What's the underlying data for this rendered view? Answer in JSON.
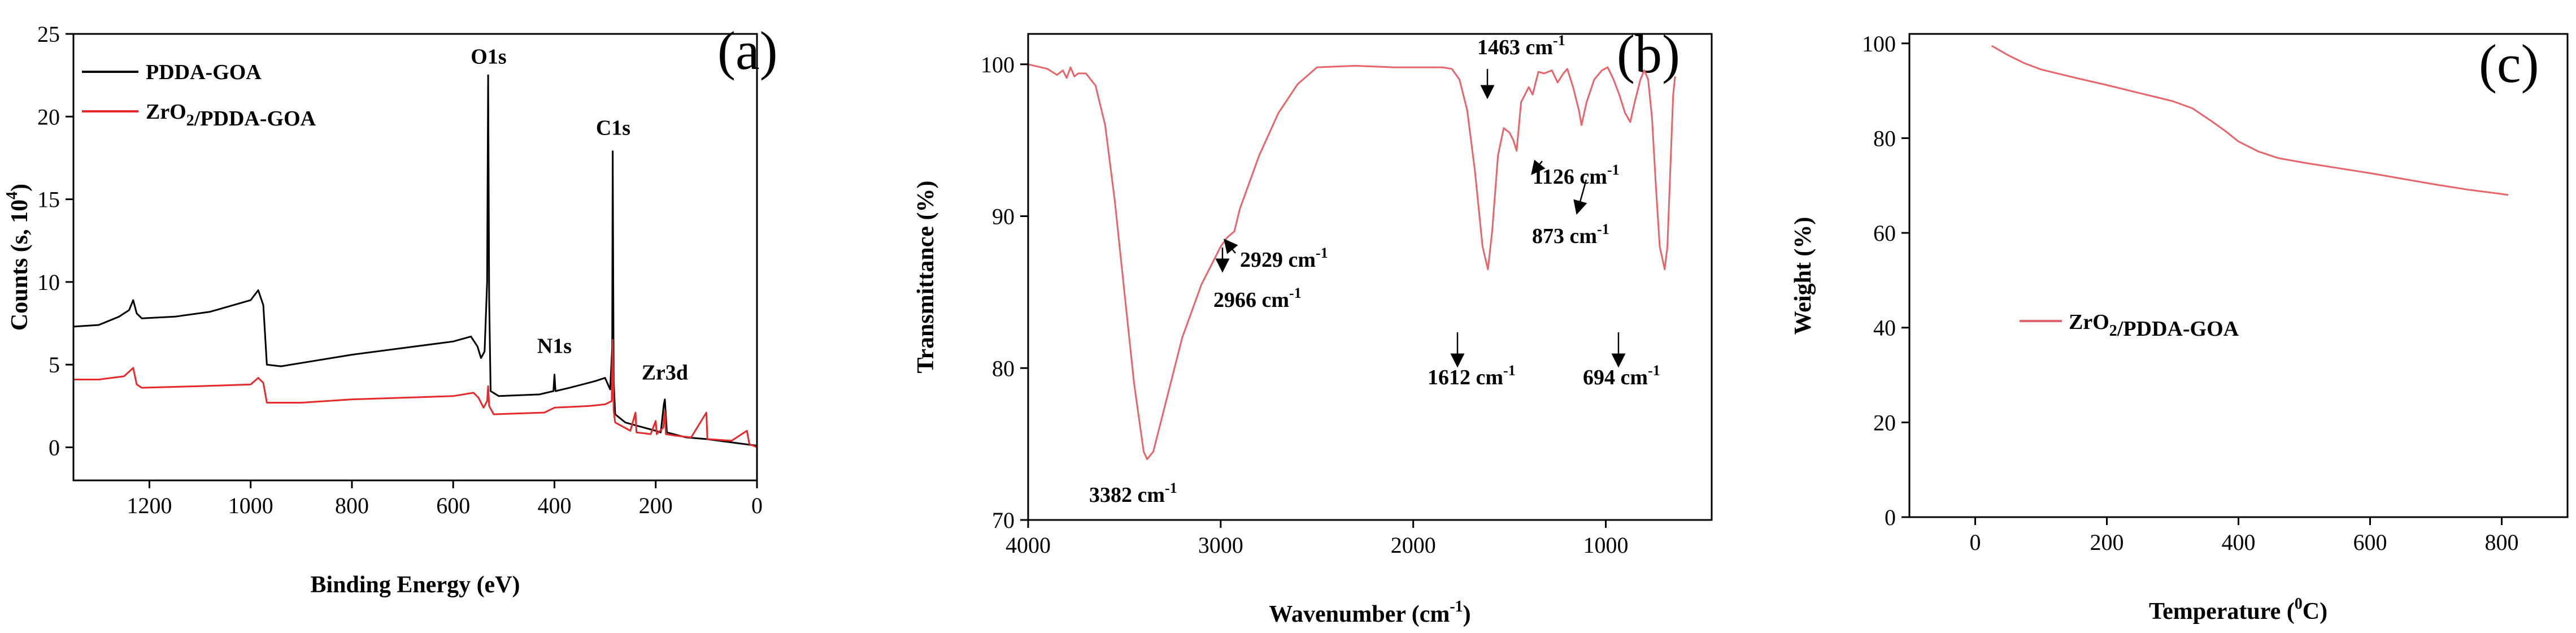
{
  "chart_data": [
    {
      "panel_label": "(a)",
      "type": "line",
      "xlabel": "Binding Energy (eV)",
      "ylabel": "Counts (s, 10",
      "ylabel_sup": "4",
      "ylabel_end": ")",
      "xlim": [
        1350,
        0
      ],
      "ylim": [
        -2,
        25
      ],
      "xticks": [
        1200,
        1000,
        800,
        600,
        400,
        200,
        0
      ],
      "yticks": [
        0,
        5,
        10,
        15,
        20,
        25
      ],
      "legend": [
        {
          "name": "PDDA-GOA",
          "color": "#000000",
          "parts": [
            {
              "t": "PDDA-GOA"
            }
          ]
        },
        {
          "name": "ZrO2/PDDA-GOA",
          "color": "#e8292b",
          "parts": [
            {
              "t": "ZrO"
            },
            {
              "t": "2",
              "sub": true
            },
            {
              "t": "/PDDA-GOA"
            }
          ]
        }
      ],
      "annotations": [
        {
          "text": "O1s",
          "x": 530,
          "y": 23.2
        },
        {
          "text": "C1s",
          "x": 284,
          "y": 18.9
        },
        {
          "text": "N1s",
          "x": 400,
          "y": 5.7
        },
        {
          "text": "Zr3d",
          "x": 182,
          "y": 4.1
        }
      ],
      "series": [
        {
          "name": "PDDA-GOA",
          "color": "#000000",
          "points": [
            [
              1350,
              7.3
            ],
            [
              1300,
              7.4
            ],
            [
              1260,
              7.9
            ],
            [
              1240,
              8.3
            ],
            [
              1232,
              8.9
            ],
            [
              1225,
              8.1
            ],
            [
              1215,
              7.8
            ],
            [
              1150,
              7.9
            ],
            [
              1080,
              8.2
            ],
            [
              1000,
              8.9
            ],
            [
              985,
              9.5
            ],
            [
              975,
              8.6
            ],
            [
              968,
              5.0
            ],
            [
              940,
              4.9
            ],
            [
              880,
              5.2
            ],
            [
              800,
              5.6
            ],
            [
              700,
              6.0
            ],
            [
              600,
              6.4
            ],
            [
              565,
              6.7
            ],
            [
              552,
              6.1
            ],
            [
              545,
              5.4
            ],
            [
              538,
              5.8
            ],
            [
              533,
              10.0
            ],
            [
              531,
              22.5
            ],
            [
              529,
              9.0
            ],
            [
              526,
              3.4
            ],
            [
              510,
              3.1
            ],
            [
              430,
              3.2
            ],
            [
              402,
              3.4
            ],
            [
              400,
              4.4
            ],
            [
              398,
              3.4
            ],
            [
              370,
              3.6
            ],
            [
              320,
              4.0
            ],
            [
              300,
              4.2
            ],
            [
              290,
              3.5
            ],
            [
              286,
              6.0
            ],
            [
              285,
              17.9
            ],
            [
              283,
              4.0
            ],
            [
              280,
              2.0
            ],
            [
              260,
              1.5
            ],
            [
              200,
              1.0
            ],
            [
              190,
              0.9
            ],
            [
              184,
              2.6
            ],
            [
              182,
              2.9
            ],
            [
              178,
              0.9
            ],
            [
              140,
              0.6
            ],
            [
              100,
              0.5
            ],
            [
              50,
              0.3
            ],
            [
              0,
              0.1
            ]
          ]
        },
        {
          "name": "ZrO2/PDDA-GOA",
          "color": "#e8292b",
          "points": [
            [
              1350,
              4.1
            ],
            [
              1300,
              4.1
            ],
            [
              1250,
              4.3
            ],
            [
              1232,
              4.8
            ],
            [
              1225,
              3.8
            ],
            [
              1215,
              3.6
            ],
            [
              1100,
              3.7
            ],
            [
              1000,
              3.8
            ],
            [
              985,
              4.2
            ],
            [
              975,
              3.9
            ],
            [
              968,
              2.7
            ],
            [
              900,
              2.7
            ],
            [
              800,
              2.9
            ],
            [
              700,
              3.0
            ],
            [
              600,
              3.1
            ],
            [
              560,
              3.3
            ],
            [
              550,
              3.0
            ],
            [
              540,
              2.4
            ],
            [
              533,
              2.8
            ],
            [
              531,
              3.7
            ],
            [
              529,
              2.5
            ],
            [
              520,
              2.0
            ],
            [
              420,
              2.1
            ],
            [
              400,
              2.4
            ],
            [
              330,
              2.5
            ],
            [
              300,
              2.6
            ],
            [
              287,
              2.8
            ],
            [
              285,
              6.5
            ],
            [
              283,
              2.2
            ],
            [
              280,
              1.5
            ],
            [
              250,
              1.0
            ],
            [
              240,
              2.1
            ],
            [
              238,
              0.9
            ],
            [
              210,
              0.8
            ],
            [
              200,
              1.6
            ],
            [
              198,
              0.8
            ],
            [
              185,
              1.2
            ],
            [
              182,
              2.2
            ],
            [
              180,
              0.8
            ],
            [
              160,
              0.7
            ],
            [
              130,
              0.6
            ],
            [
              100,
              2.1
            ],
            [
              98,
              0.5
            ],
            [
              50,
              0.4
            ],
            [
              20,
              1.0
            ],
            [
              15,
              0.2
            ],
            [
              0,
              0.0
            ]
          ]
        }
      ]
    },
    {
      "panel_label": "(b)",
      "type": "line",
      "xlabel": "Wavenumber (cm",
      "xlabel_sup": "-1",
      "xlabel_end": ")",
      "ylabel": "Transmittance (%)",
      "xlim": [
        4000,
        450
      ],
      "ylim": [
        70,
        102
      ],
      "xticks": [
        4000,
        3000,
        2000,
        1000
      ],
      "yticks": [
        70,
        80,
        90,
        100
      ],
      "annotations": [
        {
          "text": "3382 cm",
          "sup": "-1"
        },
        {
          "text": "2929 cm",
          "sup": "-1"
        },
        {
          "text": "2966 cm",
          "sup": "-1"
        },
        {
          "text": "1463 cm",
          "sup": "-1"
        },
        {
          "text": "1612 cm",
          "sup": "-1"
        },
        {
          "text": "1126 cm",
          "sup": "-1"
        },
        {
          "text": "873 cm",
          "sup": "-1"
        },
        {
          "text": "694 cm",
          "sup": "-1"
        }
      ],
      "series": [
        {
          "name": "ZrO2/PDDA-GOA",
          "color": "#e8646a",
          "points": [
            [
              4000,
              100.0
            ],
            [
              3900,
              99.7
            ],
            [
              3850,
              99.3
            ],
            [
              3820,
              99.6
            ],
            [
              3800,
              99.1
            ],
            [
              3780,
              99.8
            ],
            [
              3760,
              99.2
            ],
            [
              3740,
              99.4
            ],
            [
              3700,
              99.4
            ],
            [
              3650,
              98.6
            ],
            [
              3600,
              96.0
            ],
            [
              3550,
              91.0
            ],
            [
              3500,
              85.0
            ],
            [
              3450,
              79.0
            ],
            [
              3400,
              74.5
            ],
            [
              3382,
              74.0
            ],
            [
              3350,
              74.5
            ],
            [
              3300,
              77.0
            ],
            [
              3200,
              82.0
            ],
            [
              3100,
              85.5
            ],
            [
              3000,
              88.0
            ],
            [
              2966,
              88.6
            ],
            [
              2929,
              89.0
            ],
            [
              2900,
              90.5
            ],
            [
              2800,
              94.0
            ],
            [
              2700,
              96.8
            ],
            [
              2600,
              98.7
            ],
            [
              2500,
              99.8
            ],
            [
              2300,
              99.9
            ],
            [
              2100,
              99.8
            ],
            [
              1950,
              99.8
            ],
            [
              1850,
              99.8
            ],
            [
              1800,
              99.7
            ],
            [
              1760,
              99.0
            ],
            [
              1720,
              97.0
            ],
            [
              1680,
              93.0
            ],
            [
              1640,
              88.0
            ],
            [
              1612,
              86.5
            ],
            [
              1590,
              89.0
            ],
            [
              1560,
              94.0
            ],
            [
              1530,
              95.8
            ],
            [
              1500,
              95.5
            ],
            [
              1480,
              95.0
            ],
            [
              1463,
              94.3
            ],
            [
              1440,
              97.5
            ],
            [
              1400,
              98.5
            ],
            [
              1380,
              98.0
            ],
            [
              1350,
              99.5
            ],
            [
              1320,
              99.4
            ],
            [
              1280,
              99.6
            ],
            [
              1250,
              98.8
            ],
            [
              1220,
              99.4
            ],
            [
              1200,
              99.7
            ],
            [
              1170,
              98.5
            ],
            [
              1140,
              97.0
            ],
            [
              1126,
              96.0
            ],
            [
              1100,
              97.5
            ],
            [
              1060,
              99.0
            ],
            [
              1020,
              99.6
            ],
            [
              990,
              99.8
            ],
            [
              960,
              99.0
            ],
            [
              930,
              98.0
            ],
            [
              900,
              96.8
            ],
            [
              873,
              96.2
            ],
            [
              850,
              97.5
            ],
            [
              820,
              99.0
            ],
            [
              800,
              99.6
            ],
            [
              780,
              99.0
            ],
            [
              760,
              96.5
            ],
            [
              740,
              92.0
            ],
            [
              720,
              88.0
            ],
            [
              694,
              86.5
            ],
            [
              680,
              88.0
            ],
            [
              665,
              93.0
            ],
            [
              650,
              98.0
            ],
            [
              640,
              99.2
            ]
          ]
        }
      ]
    },
    {
      "panel_label": "(c)",
      "type": "line",
      "xlabel": "Temperature (",
      "xlabel_sup": "0",
      "xlabel_end": "C)",
      "ylabel": "Weight (%)",
      "xlim": [
        -100,
        900
      ],
      "ylim": [
        0,
        102
      ],
      "xticks": [
        0,
        200,
        400,
        600,
        800
      ],
      "yticks": [
        0,
        20,
        40,
        60,
        80,
        100
      ],
      "legend": [
        {
          "name": "ZrO2/PDDA-GOA",
          "color": "#e8646a",
          "parts": [
            {
              "t": "ZrO"
            },
            {
              "t": "2",
              "sub": true
            },
            {
              "t": "/PDDA-GOA"
            }
          ]
        }
      ],
      "series": [
        {
          "name": "ZrO2/PDDA-GOA",
          "color": "#e8646a",
          "points": [
            [
              25,
              99.5
            ],
            [
              50,
              97.5
            ],
            [
              75,
              95.8
            ],
            [
              100,
              94.5
            ],
            [
              150,
              92.8
            ],
            [
              200,
              91.2
            ],
            [
              250,
              89.5
            ],
            [
              300,
              87.8
            ],
            [
              330,
              86.3
            ],
            [
              360,
              83.5
            ],
            [
              380,
              81.5
            ],
            [
              400,
              79.3
            ],
            [
              430,
              77.2
            ],
            [
              460,
              75.8
            ],
            [
              500,
              74.8
            ],
            [
              550,
              73.7
            ],
            [
              600,
              72.6
            ],
            [
              650,
              71.4
            ],
            [
              700,
              70.2
            ],
            [
              750,
              69.1
            ],
            [
              800,
              68.2
            ],
            [
              810,
              68.0
            ]
          ]
        }
      ]
    }
  ]
}
